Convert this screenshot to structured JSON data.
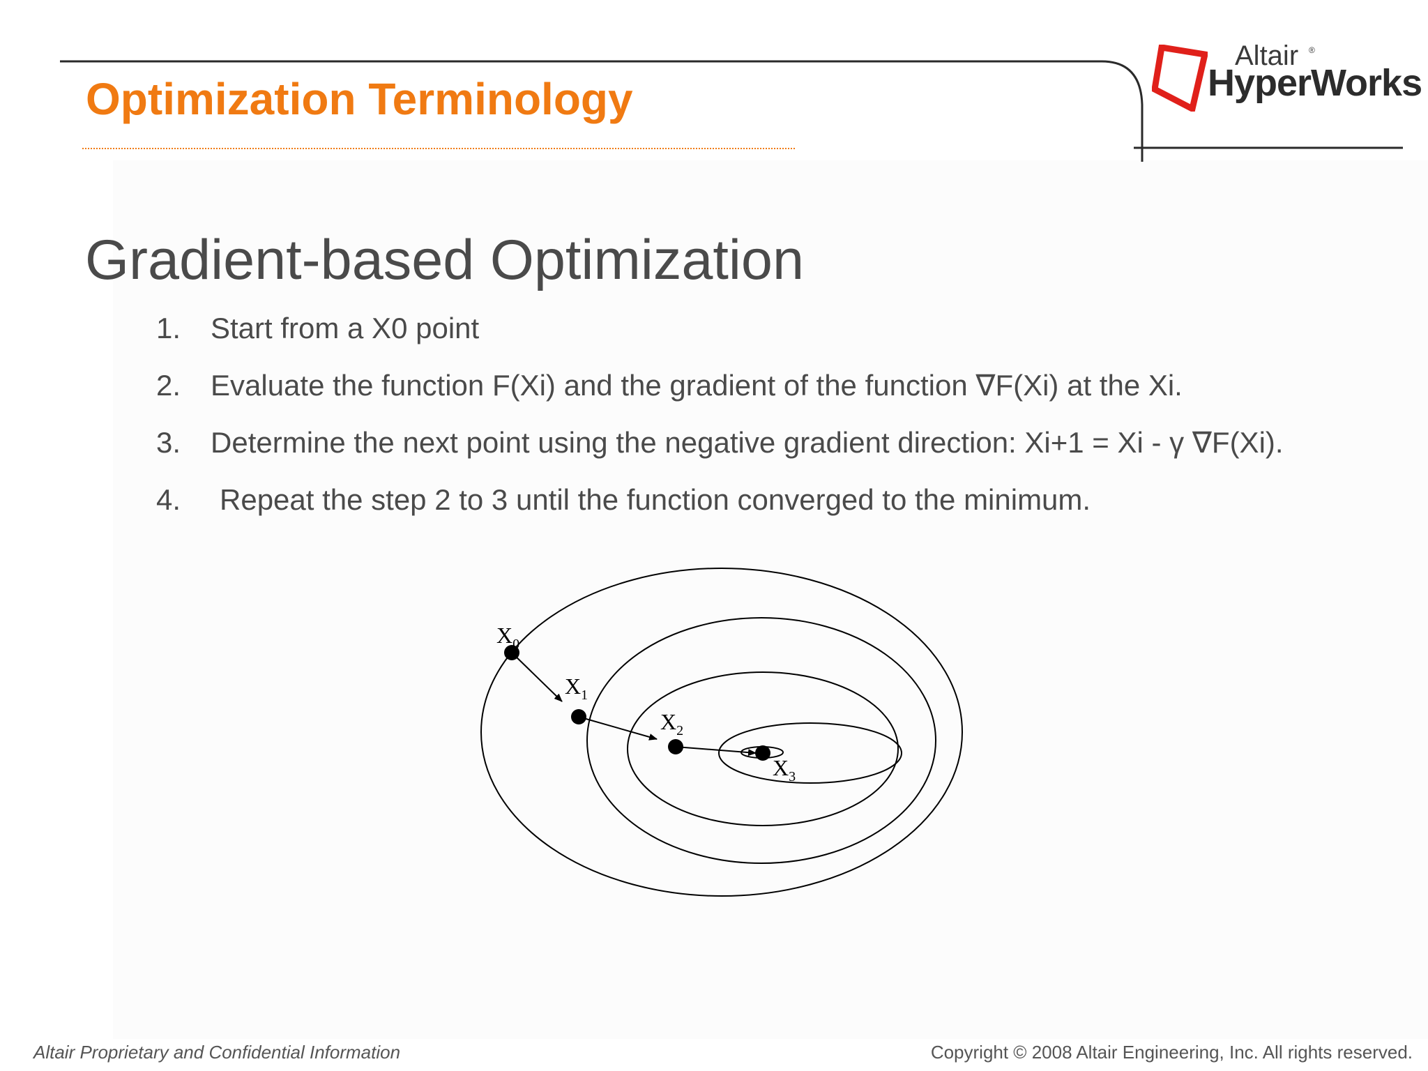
{
  "header": {
    "section_title": "Optimization Terminology",
    "logo": {
      "brand_small": "Altair",
      "brand_large": "HyperWorks",
      "registered_mark": "®",
      "mark_icon": "altair-logo-mark-icon",
      "brand_color": "#e0201a"
    },
    "accent_color": "#f07a12"
  },
  "main": {
    "heading": "Gradient-based Optimization",
    "steps": [
      {
        "number": "1.",
        "text": "Start from a X0 point"
      },
      {
        "number": "2.",
        "text": "Evaluate the function F(Xi) and the gradient of the function ∇F(Xi) at the Xi."
      },
      {
        "number": "3.",
        "text": "Determine the next point using the negative gradient direction: Xi+1 = Xi - γ ∇F(Xi)."
      },
      {
        "number": "4.",
        "text": "Repeat the step 2 to 3 until the function converged to the minimum."
      }
    ]
  },
  "diagram": {
    "points": [
      {
        "base": "X",
        "sub": "0"
      },
      {
        "base": "X",
        "sub": "1"
      },
      {
        "base": "X",
        "sub": "2"
      },
      {
        "base": "X",
        "sub": "3"
      }
    ]
  },
  "footer": {
    "left": "Altair Proprietary and Confidential Information",
    "right": "Copyright © 2008 Altair Engineering, Inc. All rights reserved."
  }
}
